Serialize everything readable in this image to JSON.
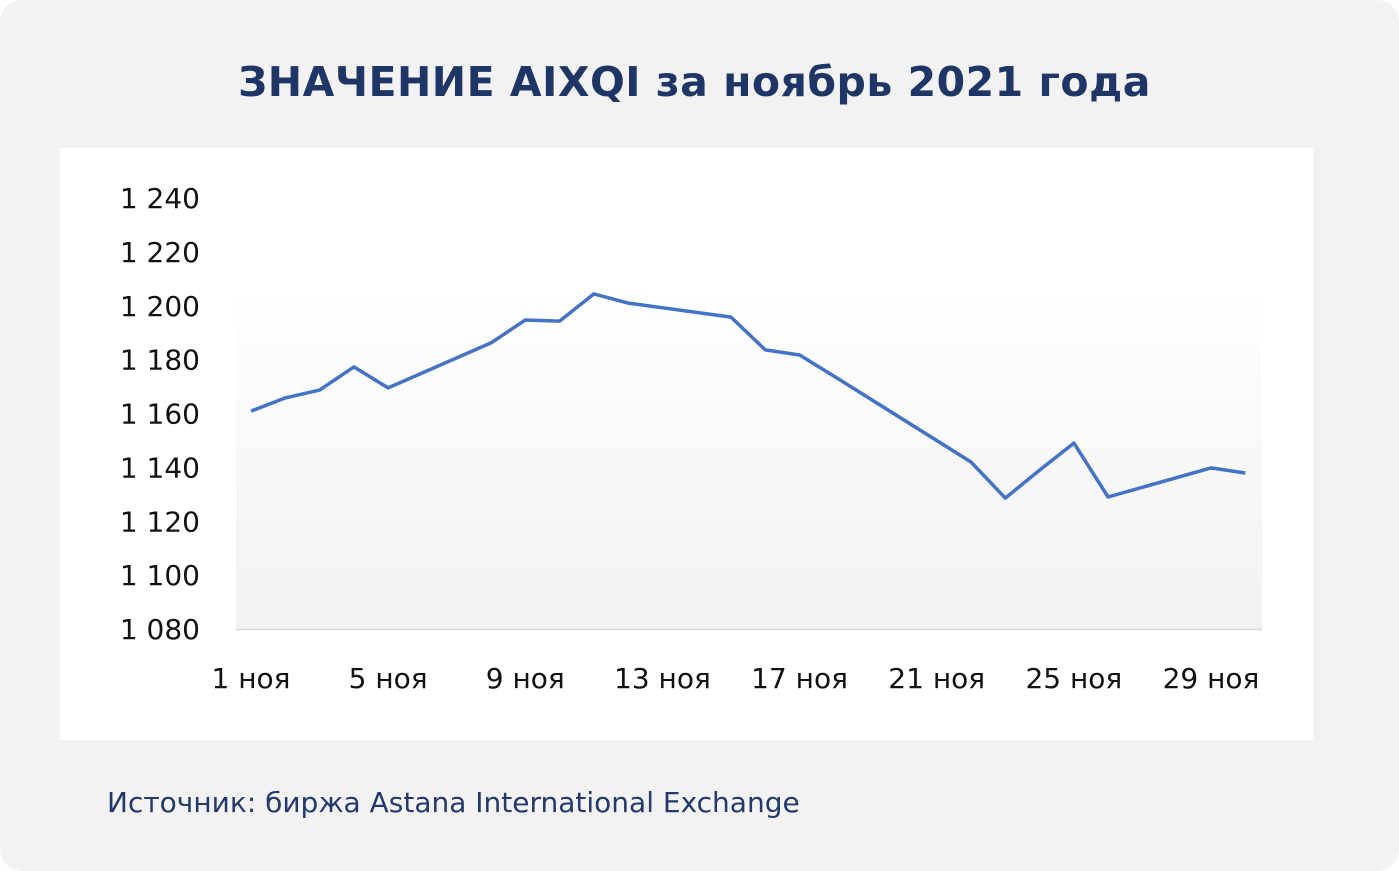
{
  "title": "ЗНАЧЕНИЕ AIXQI за ноябрь 2021 года",
  "source": "Источник: биржа Astana International Exchange",
  "chart_data": {
    "type": "line",
    "title": "ЗНАЧЕНИЕ AIXQI за ноябрь 2021 года",
    "xlabel": "",
    "ylabel": "",
    "x_unit": "day of November 2021",
    "ylim": [
      1080,
      1240
    ],
    "xlim": [
      1,
      30
    ],
    "y_ticks": [
      1080,
      1100,
      1120,
      1140,
      1160,
      1180,
      1200,
      1220,
      1240
    ],
    "y_tick_labels": [
      "1 080",
      "1 100",
      "1 120",
      "1 140",
      "1 160",
      "1 180",
      "1 200",
      "1 220",
      "1 240"
    ],
    "x_ticks": [
      1,
      5,
      9,
      13,
      17,
      21,
      25,
      29
    ],
    "x_tick_labels": [
      "1 ноя",
      "5 ноя",
      "9 ноя",
      "13 ноя",
      "17 ноя",
      "21 ноя",
      "25 ноя",
      "29 ноя"
    ],
    "grid": false,
    "line_color": "#4472c4",
    "series": [
      {
        "x": [
          1,
          2,
          3,
          4,
          5,
          8,
          9,
          10,
          11,
          12,
          15,
          16,
          17,
          18,
          22,
          23,
          24,
          25,
          26,
          29,
          30
        ],
        "values": [
          1160.9,
          1165.8,
          1168.7,
          1177.3,
          1169.5,
          1186.2,
          1194.7,
          1194.3,
          1204.4,
          1201.0,
          1195.8,
          1183.6,
          1181.7,
          1173.9,
          1142.0,
          1128.6,
          1139.0,
          1149.0,
          1129.0,
          1139.8,
          1137.9
        ]
      }
    ]
  }
}
